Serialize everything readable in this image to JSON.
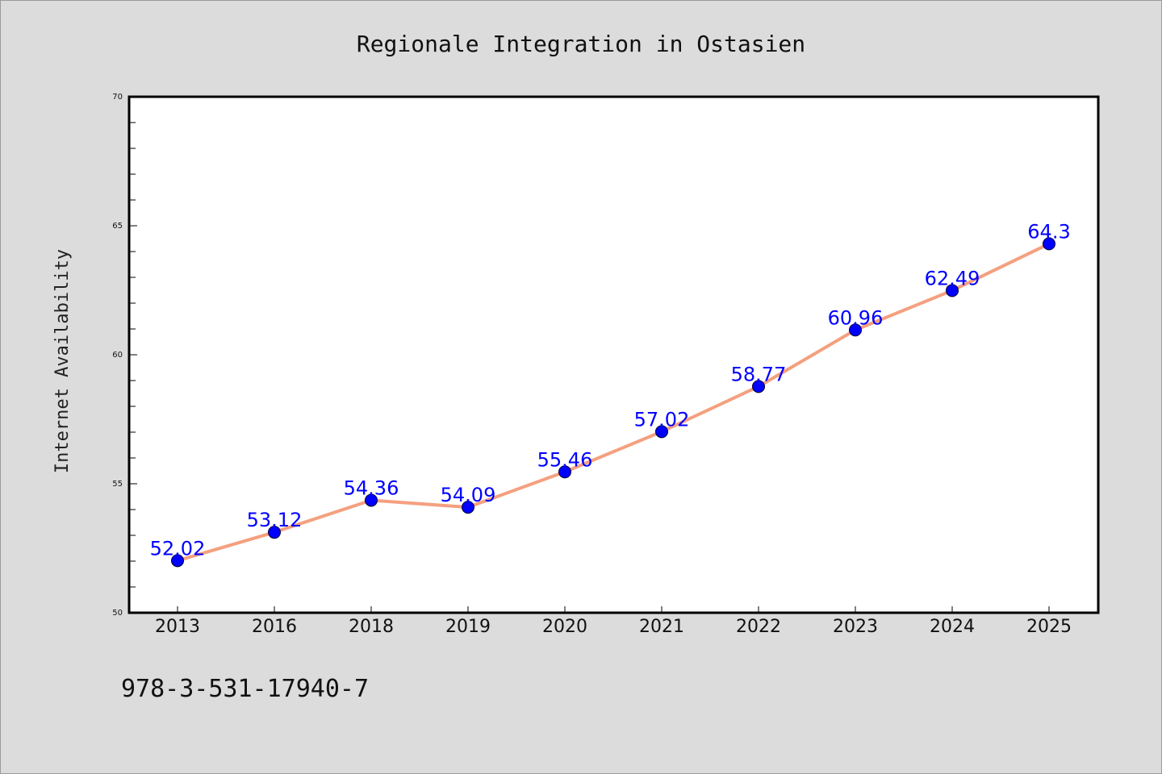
{
  "chart_data": {
    "type": "line",
    "title": "Regionale Integration in Ostasien",
    "xlabel": "",
    "ylabel": "Internet Availability",
    "categories": [
      "2013",
      "2016",
      "2018",
      "2019",
      "2020",
      "2021",
      "2022",
      "2023",
      "2024",
      "2025"
    ],
    "series": [
      {
        "values": [
          52.02,
          53.12,
          54.36,
          54.09,
          55.46,
          57.02,
          58.77,
          60.96,
          62.49,
          64.3
        ],
        "labels": [
          "52.02",
          "53.12",
          "54.36",
          "54.09",
          "55.46",
          "57.02",
          "58.77",
          "60.96",
          "62.49",
          "64.3"
        ],
        "line_color": "#f4a07f",
        "marker_color": "#0000ff"
      }
    ],
    "ylim": [
      50,
      70
    ],
    "yticks": [
      50,
      55,
      60,
      65,
      70
    ],
    "ytick_labels": [
      "50",
      "55",
      "60",
      "65",
      "70"
    ],
    "grid": false,
    "legend": "none"
  },
  "footer_text": "978-3-531-17940-7",
  "colors": {
    "background": "#dcdcdc",
    "plot_background": "#ffffff",
    "axis": "#000000"
  }
}
